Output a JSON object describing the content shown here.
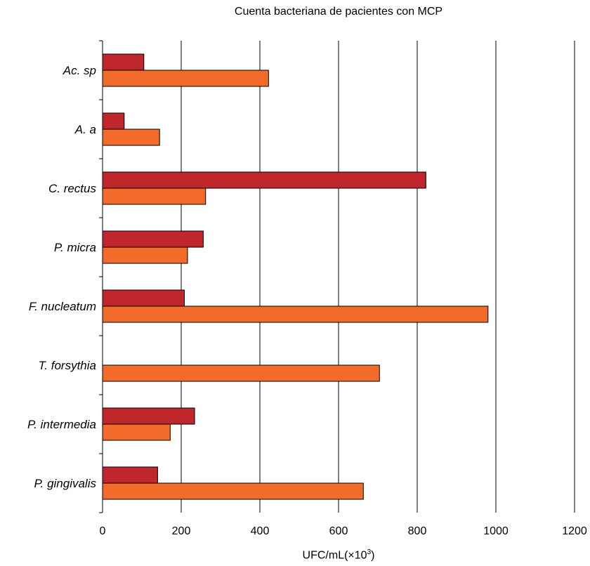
{
  "chart_data": {
    "type": "bar",
    "orientation": "horizontal",
    "title": "Cuenta bacteriana de pacientes con MCP",
    "xlabel_main": "UFC/mL(×10",
    "xlabel_sup": "3",
    "xlabel_tail": ")",
    "xlim": [
      0,
      1200
    ],
    "xticks": [
      "0",
      "200",
      "400",
      "600",
      "800",
      "1000",
      "1200"
    ],
    "grid": "vertical",
    "categories": [
      "Ac. sp",
      "A. a",
      "C. rectus",
      "P. micra",
      "F. nucleatum",
      "T. forsythia",
      "P. intermedia",
      "P. gingivalis"
    ],
    "series": [
      {
        "color": "#c0272d",
        "values": [
          105,
          55,
          822,
          256,
          208,
          0,
          234,
          140
        ]
      },
      {
        "color": "#f26b2a",
        "values": [
          422,
          145,
          262,
          216,
          980,
          704,
          172,
          663
        ]
      }
    ]
  }
}
